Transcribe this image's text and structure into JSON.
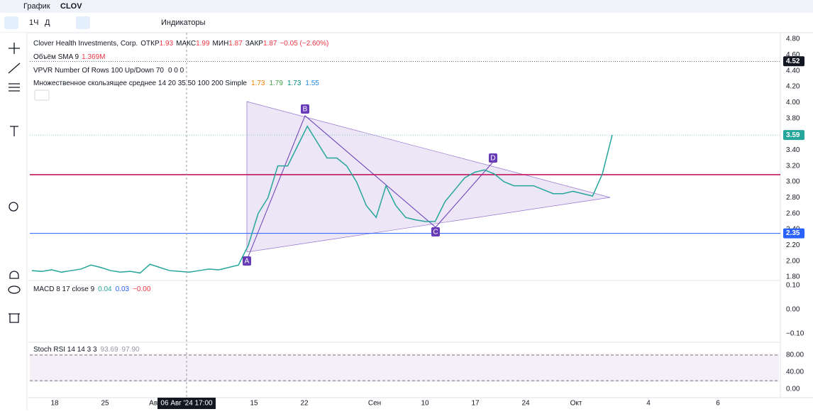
{
  "header": {
    "label": "График",
    "symbol": "CLOV"
  },
  "toolbar": {
    "interval": "1Ч",
    "style": "Д",
    "indicators": "Индикаторы"
  },
  "legend": {
    "title": "Clover Health Investments, Corp.",
    "ohlc": [
      {
        "label": "ОТКР",
        "value": "1.93"
      },
      {
        "label": "МАКС",
        "value": "1.99"
      },
      {
        "label": "МИН",
        "value": "1.87"
      },
      {
        "label": "ЗАКР",
        "value": "1.87"
      }
    ],
    "change": "−0.05 (−2.60%)",
    "volume": {
      "name": "Объём SMA 9",
      "value": "1.369M"
    },
    "vpvr": {
      "name": "VPVR Number Of Rows 100 Up/Down 70",
      "value": "0 0 0"
    },
    "ma": {
      "name": "Множественное скользящее среднее 14 20 35 50 100 200 Simple",
      "values": [
        "1.73",
        "1.79",
        "1.73",
        "1.55"
      ]
    },
    "macd": {
      "name": "MACD 8 17 close 9",
      "values": [
        "0.04",
        "0.03",
        "−0.00"
      ]
    },
    "stoch": {
      "name": "Stoch RSI 14 14 3 3",
      "values": [
        "93.69",
        "97.90"
      ]
    }
  },
  "pattern": {
    "labels": [
      "A",
      "B",
      "C",
      "D"
    ]
  },
  "chart_data": {
    "type": "line",
    "color": "#26a69a",
    "values": [
      1.88,
      1.87,
      1.89,
      1.86,
      1.88,
      1.9,
      1.95,
      1.92,
      1.88,
      1.86,
      1.87,
      1.85,
      1.96,
      1.92,
      1.88,
      1.87,
      1.86,
      1.88,
      1.9,
      1.89,
      1.92,
      1.95,
      2.2,
      2.6,
      2.8,
      3.2,
      3.2,
      3.45,
      3.7,
      3.5,
      3.3,
      3.3,
      3.2,
      3.0,
      2.7,
      2.55,
      2.95,
      2.7,
      2.55,
      2.52,
      2.5,
      2.5,
      2.75,
      2.9,
      3.05,
      3.12,
      3.15,
      3.1,
      3.0,
      2.95,
      2.95,
      2.95,
      2.9,
      2.85,
      2.85,
      2.88,
      2.85,
      2.82,
      3.1,
      3.59
    ],
    "ylim": [
      1.8,
      4.8
    ],
    "yticks": [
      {
        "value": 4.8,
        "label": "4.80"
      },
      {
        "value": 4.6,
        "label": "4.60"
      },
      {
        "value": 4.4,
        "label": "4.40"
      },
      {
        "value": 4.2,
        "label": "4.20"
      },
      {
        "value": 4.0,
        "label": "4.00"
      },
      {
        "value": 3.8,
        "label": "3.80"
      },
      {
        "value": 3.4,
        "label": "3.40"
      },
      {
        "value": 3.2,
        "label": "3.20"
      },
      {
        "value": 3.0,
        "label": "3.00"
      },
      {
        "value": 2.8,
        "label": "2.80"
      },
      {
        "value": 2.6,
        "label": "2.60"
      },
      {
        "value": 2.4,
        "label": "2.40"
      },
      {
        "value": 2.2,
        "label": "2.20"
      },
      {
        "value": 2.0,
        "label": "2.00"
      },
      {
        "value": 1.8,
        "label": "1.80"
      }
    ],
    "price_labels": [
      {
        "value": 4.52,
        "label": "4.52",
        "color": "#131722"
      },
      {
        "value": 3.59,
        "label": "3.59",
        "color": "#26a69a"
      },
      {
        "value": 2.35,
        "label": "2.35",
        "color": "#2962ff"
      }
    ],
    "hlines": [
      {
        "value": 3.09,
        "color": "#c2185b"
      },
      {
        "value": 2.35,
        "color": "#2962ff"
      }
    ],
    "macd_ticks": [
      {
        "value": 0.1,
        "label": "0.10"
      },
      {
        "value": 0,
        "label": "0.00"
      },
      {
        "value": -0.1,
        "label": "−0.10"
      }
    ],
    "stoch_ticks": [
      {
        "value": 80,
        "label": "80.00"
      },
      {
        "value": 40,
        "label": "40.00"
      },
      {
        "value": 0,
        "label": "0.00"
      }
    ],
    "xlabels": [
      "18",
      "25",
      "Авг",
      "15",
      "22",
      "Сен",
      "10",
      "17",
      "24",
      "Окт",
      "4",
      "6"
    ],
    "crosshair_time": "06 Авг '24  17:00"
  }
}
